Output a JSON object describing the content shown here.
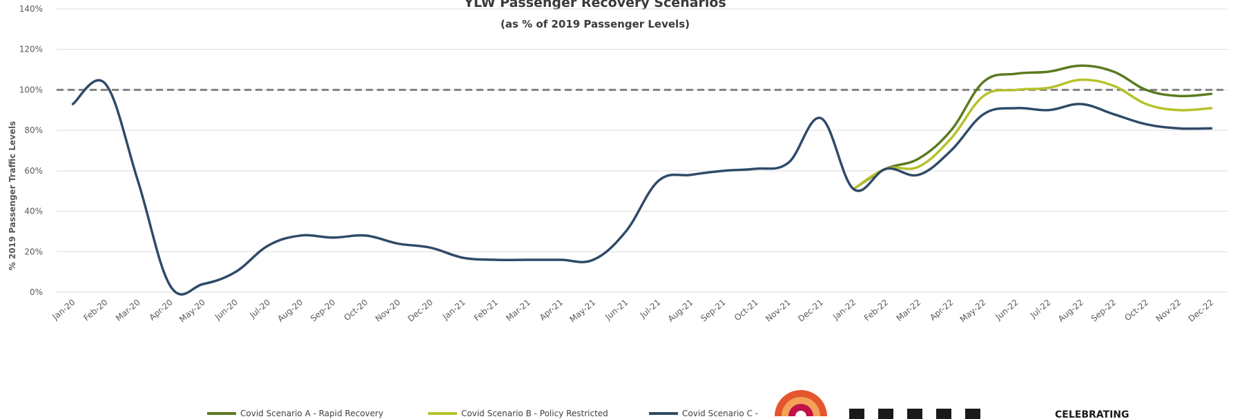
{
  "chart_data": {
    "type": "line",
    "title": "YLW Passenger Recovery Scenarios",
    "subtitle": "(as % of 2019 Passenger Levels)",
    "ylabel": "% 2019 Passenger Traffic Levels",
    "ylim": [
      0,
      140
    ],
    "yticks": [
      "0%",
      "20%",
      "40%",
      "60%",
      "80%",
      "100%",
      "120%",
      "140%"
    ],
    "grid": true,
    "reference_line": 100,
    "categories": [
      "Jan-20",
      "Feb-20",
      "Mar-20",
      "Apr-20",
      "May-20",
      "Jun-20",
      "Jul-20",
      "Aug-20",
      "Sep-20",
      "Oct-20",
      "Nov-20",
      "Dec-20",
      "Jan-21",
      "Feb-21",
      "Mar-21",
      "Apr-21",
      "May-21",
      "Jun-21",
      "Jul-21",
      "Aug-21",
      "Sep-21",
      "Oct-21",
      "Nov-21",
      "Dec-21",
      "Jan-22",
      "Feb-22",
      "Mar-22",
      "Apr-22",
      "May-22",
      "Jun-22",
      "Jul-22",
      "Aug-22",
      "Sep-22",
      "Oct-22",
      "Nov-22",
      "Dec-22"
    ],
    "series": [
      {
        "name": "Covid Scenario A - Rapid Recovery",
        "color": "#5a7a1e",
        "values": [
          null,
          null,
          null,
          null,
          null,
          null,
          null,
          null,
          null,
          null,
          null,
          null,
          null,
          null,
          null,
          null,
          null,
          null,
          null,
          null,
          null,
          null,
          null,
          null,
          51,
          61,
          66,
          80,
          104,
          108,
          109,
          112,
          109,
          100,
          97,
          98
        ]
      },
      {
        "name": "Covid Scenario B - Policy Restricted",
        "color": "#b5c22a",
        "values": [
          null,
          null,
          null,
          null,
          null,
          null,
          null,
          null,
          null,
          null,
          null,
          null,
          null,
          null,
          null,
          null,
          null,
          null,
          null,
          null,
          null,
          null,
          null,
          null,
          51,
          61,
          62,
          76,
          97,
          100,
          101,
          105,
          102,
          93,
          90,
          91
        ]
      },
      {
        "name": "Covid Scenario C -",
        "color": "#2e4a68",
        "values": [
          93,
          103,
          55,
          3,
          4,
          10,
          23,
          28,
          27,
          28,
          24,
          22,
          17,
          16,
          16,
          16,
          16,
          30,
          55,
          58,
          60,
          61,
          64,
          86,
          51,
          61,
          58,
          70,
          88,
          91,
          90,
          93,
          88,
          83,
          81,
          81
        ]
      }
    ],
    "legend_position": "bottom",
    "logo_text": "CELEBRATING"
  }
}
